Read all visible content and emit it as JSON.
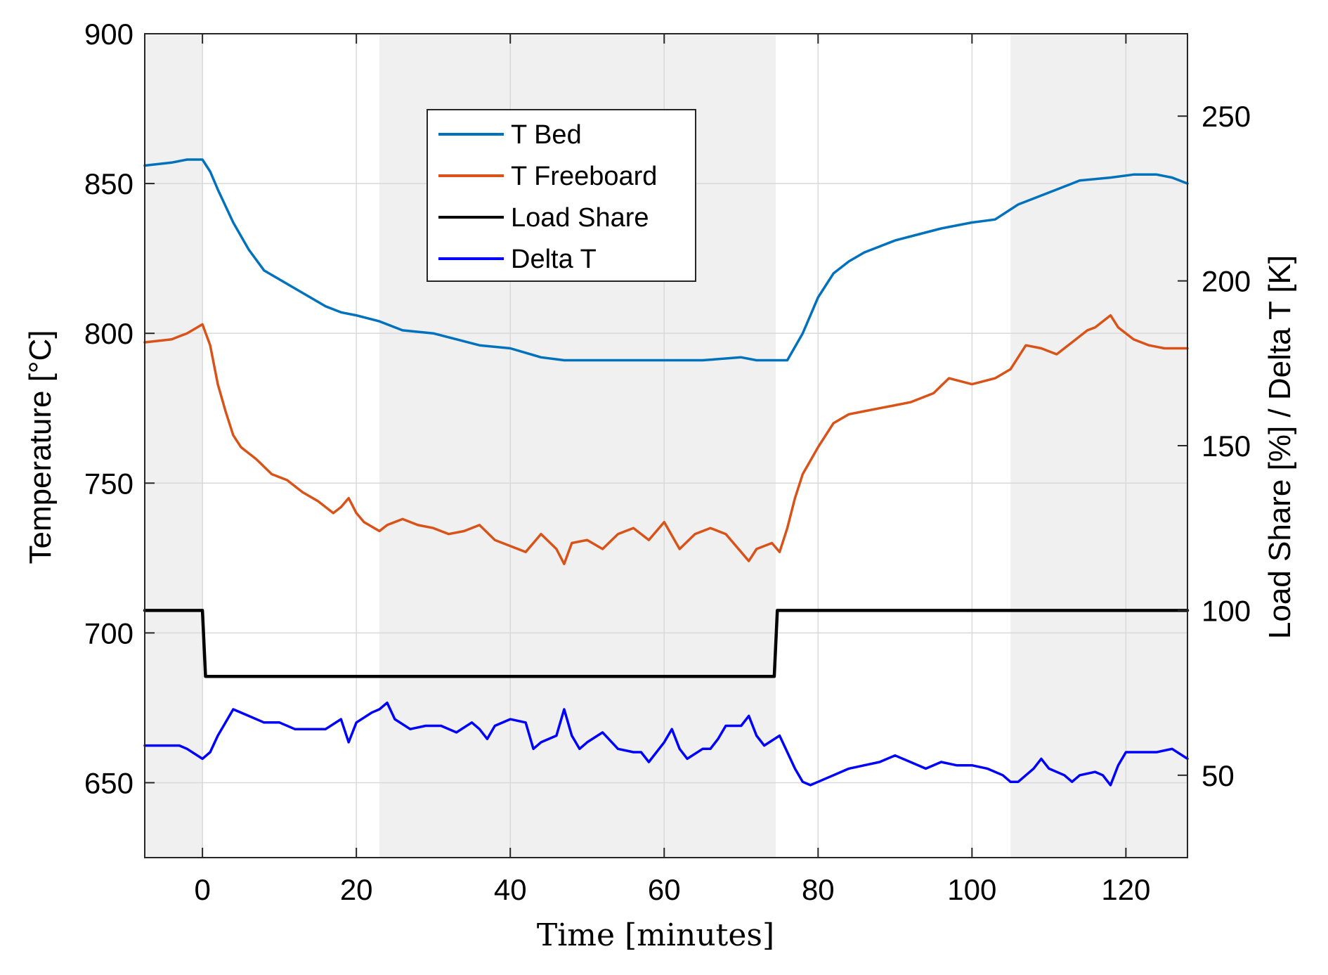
{
  "chart_data": {
    "type": "line",
    "xlabel": "Time [minutes]",
    "ylabel_left": "Temperature [°C]",
    "ylabel_right": "Load Share [%] / Delta T [K]",
    "xlim": [
      -7.5,
      128
    ],
    "ylim_left": [
      625,
      900
    ],
    "ylim_right": [
      25,
      275
    ],
    "x_ticks": [
      0,
      20,
      40,
      60,
      80,
      100,
      120
    ],
    "y_ticks_left": [
      650,
      700,
      750,
      800,
      850,
      900
    ],
    "y_ticks_right": [
      50,
      100,
      150,
      200,
      250
    ],
    "grid": true,
    "legend_position": "upper-center",
    "shaded_intervals": [
      [
        -7.5,
        0
      ],
      [
        23,
        74.5
      ],
      [
        105,
        128
      ]
    ],
    "colors": {
      "shade": "#f0f0f0",
      "grid": "#d9d9d9",
      "t_bed": "#0072bd",
      "t_freeboard": "#d95319",
      "load_share": "#000000",
      "delta_t": "#0000ff"
    },
    "series": [
      {
        "name": "T Bed",
        "axis": "left",
        "x": [
          -7.5,
          -4,
          -2,
          0,
          1,
          2,
          4,
          6,
          8,
          10,
          12,
          14,
          16,
          18,
          20,
          23,
          26,
          30,
          33,
          36,
          40,
          44,
          47,
          50,
          55,
          60,
          65,
          70,
          72,
          74,
          76,
          78,
          80,
          82,
          84,
          86,
          88,
          90,
          93,
          96,
          100,
          103,
          106,
          110,
          114,
          118,
          121,
          124,
          126,
          128
        ],
        "y": [
          856,
          857,
          858,
          858,
          854,
          848,
          837,
          828,
          821,
          818,
          815,
          812,
          809,
          807,
          806,
          804,
          801,
          800,
          798,
          796,
          795,
          792,
          791,
          791,
          791,
          791,
          791,
          792,
          791,
          791,
          791,
          800,
          812,
          820,
          824,
          827,
          829,
          831,
          833,
          835,
          837,
          838,
          843,
          847,
          851,
          852,
          853,
          853,
          852,
          850
        ]
      },
      {
        "name": "T Freeboard",
        "axis": "left",
        "x": [
          -7.5,
          -4,
          -2,
          0,
          1,
          2,
          3,
          4,
          5,
          7,
          9,
          11,
          13,
          15,
          17,
          18,
          19,
          20,
          21,
          23,
          24,
          26,
          28,
          30,
          32,
          34,
          36,
          38,
          40,
          42,
          44,
          46,
          47,
          48,
          50,
          52,
          54,
          56,
          58,
          60,
          62,
          64,
          66,
          68,
          70,
          71,
          72,
          74,
          75,
          76,
          77,
          78,
          80,
          82,
          84,
          86,
          88,
          90,
          92,
          95,
          97,
          100,
          103,
          105,
          107,
          109,
          111,
          113,
          115,
          116,
          118,
          119,
          121,
          123,
          125,
          128
        ],
        "y": [
          797,
          798,
          800,
          803,
          796,
          783,
          774,
          766,
          762,
          758,
          753,
          751,
          747,
          744,
          740,
          742,
          745,
          740,
          737,
          734,
          736,
          738,
          736,
          735,
          733,
          734,
          736,
          731,
          729,
          727,
          733,
          728,
          723,
          730,
          731,
          728,
          733,
          735,
          731,
          737,
          728,
          733,
          735,
          733,
          727,
          724,
          728,
          730,
          727,
          735,
          745,
          753,
          762,
          770,
          773,
          774,
          775,
          776,
          777,
          780,
          785,
          783,
          785,
          788,
          796,
          795,
          793,
          797,
          801,
          802,
          806,
          802,
          798,
          796,
          795,
          795
        ]
      },
      {
        "name": "Load Share",
        "axis": "right",
        "x": [
          -7.5,
          0,
          0.4,
          74.3,
          74.7,
          128
        ],
        "y": [
          100,
          100,
          80,
          80,
          100,
          100
        ]
      },
      {
        "name": "Delta T",
        "axis": "right",
        "x": [
          -7.5,
          -3,
          -2,
          0,
          1,
          2,
          3,
          4,
          6,
          8,
          10,
          12,
          14,
          16,
          18,
          19,
          20,
          22,
          23,
          24,
          25,
          27,
          29,
          31,
          33,
          35,
          36,
          37,
          38,
          40,
          42,
          43,
          44,
          46,
          47,
          48,
          49,
          50,
          52,
          54,
          56,
          57,
          58,
          60,
          61,
          62,
          63,
          65,
          66,
          67,
          68,
          70,
          71,
          72,
          73,
          75,
          76,
          77,
          78,
          79,
          80,
          82,
          84,
          86,
          88,
          90,
          92,
          94,
          96,
          98,
          100,
          102,
          104,
          105,
          106,
          108,
          109,
          110,
          112,
          113,
          114,
          116,
          117,
          118,
          119,
          120,
          122,
          124,
          126,
          128
        ],
        "y": [
          59,
          59,
          58,
          55,
          57,
          62,
          66,
          70,
          68,
          66,
          66,
          64,
          64,
          64,
          67,
          60,
          66,
          69,
          70,
          72,
          67,
          64,
          65,
          65,
          63,
          66,
          64,
          61,
          65,
          67,
          66,
          58,
          60,
          62,
          70,
          62,
          58,
          60,
          63,
          58,
          57,
          57,
          54,
          60,
          64,
          58,
          55,
          58,
          58,
          61,
          65,
          65,
          68,
          62,
          59,
          62,
          57,
          52,
          48,
          47,
          48,
          50,
          52,
          53,
          54,
          56,
          54,
          52,
          54,
          53,
          53,
          52,
          50,
          48,
          48,
          52,
          55,
          52,
          50,
          48,
          50,
          51,
          50,
          47,
          53,
          57,
          57,
          57,
          58,
          55
        ]
      }
    ]
  }
}
